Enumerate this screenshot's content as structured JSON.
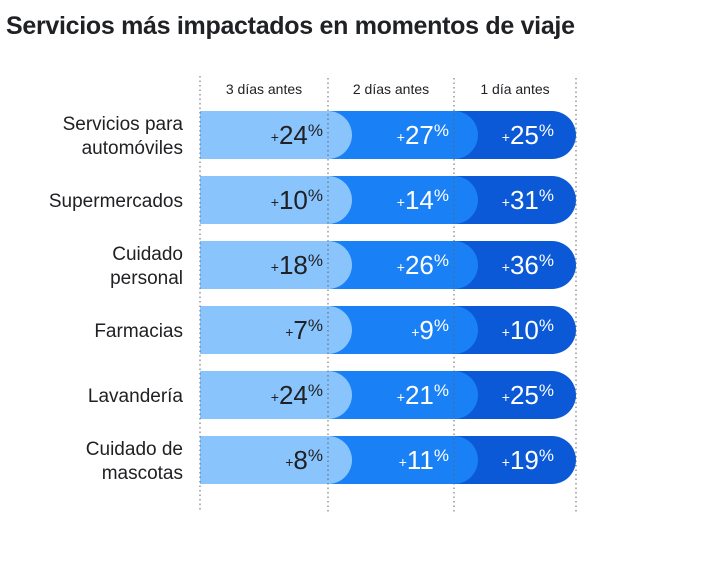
{
  "title": "Servicios más impactados en momentos de viaje",
  "colors": {
    "segment1": "#8ac4fc",
    "segment2": "#1a80f5",
    "segment3": "#0b59d6",
    "text_on_light": "#202124",
    "text_on_dark": "#ffffff"
  },
  "chart_data": {
    "type": "bar",
    "stacked": true,
    "orientation": "horizontal",
    "title": "Servicios más impactados en momentos de viaje",
    "categories": [
      [
        "Servicios para",
        "automóviles"
      ],
      [
        "Supermercados"
      ],
      [
        "Cuidado",
        "personal"
      ],
      [
        "Farmacias"
      ],
      [
        "Lavandería"
      ],
      [
        "Cuidado de",
        "mascotas"
      ]
    ],
    "series": [
      {
        "name": "3 días antes",
        "values": [
          24,
          10,
          18,
          7,
          24,
          8
        ]
      },
      {
        "name": "2 días antes",
        "values": [
          27,
          14,
          26,
          9,
          21,
          11
        ]
      },
      {
        "name": "1 día antes",
        "values": [
          25,
          31,
          36,
          10,
          25,
          19
        ]
      }
    ],
    "value_prefix": "+",
    "value_suffix": "%",
    "grid": "dotted column dividers",
    "legend": "column headers above bars"
  }
}
